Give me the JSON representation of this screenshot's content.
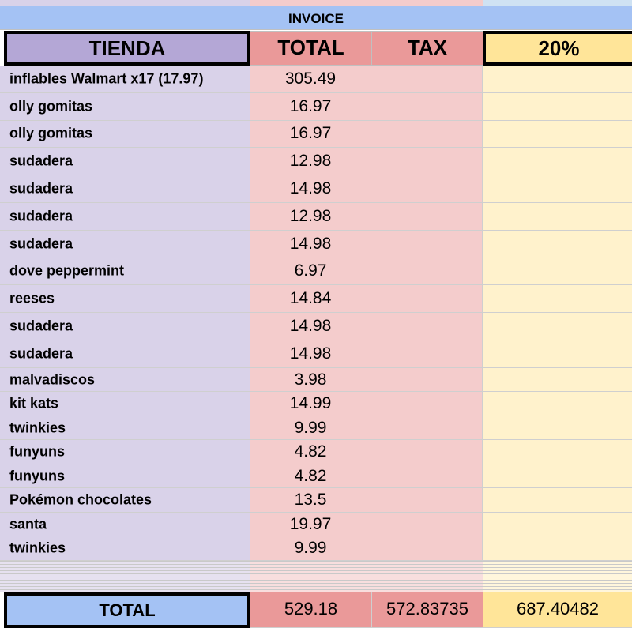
{
  "sheet": {
    "title": "INVOICE",
    "headers": {
      "tienda": "TIENDA",
      "total": "TOTAL",
      "tax": "TAX",
      "percent": "20%"
    },
    "rows": [
      {
        "tienda": "inflables Walmart x17 (17.97)",
        "total": "305.49"
      },
      {
        "tienda": "olly gomitas",
        "total": "16.97"
      },
      {
        "tienda": "olly gomitas",
        "total": "16.97"
      },
      {
        "tienda": "sudadera",
        "total": "12.98"
      },
      {
        "tienda": "sudadera",
        "total": "14.98"
      },
      {
        "tienda": "sudadera",
        "total": "12.98"
      },
      {
        "tienda": "sudadera",
        "total": "14.98"
      },
      {
        "tienda": "dove peppermint",
        "total": "6.97"
      },
      {
        "tienda": "reeses",
        "total": "14.84"
      },
      {
        "tienda": "sudadera",
        "total": "14.98"
      },
      {
        "tienda": "sudadera",
        "total": "14.98"
      },
      {
        "tienda": "malvadiscos",
        "total": "3.98"
      },
      {
        "tienda": "kit kats",
        "total": "14.99"
      },
      {
        "tienda": "twinkies",
        "total": "9.99"
      },
      {
        "tienda": "funyuns",
        "total": "4.82"
      },
      {
        "tienda": "funyuns",
        "total": "4.82"
      },
      {
        "tienda": "Pokémon chocolates",
        "total": "13.5"
      },
      {
        "tienda": "santa",
        "total": "19.97"
      },
      {
        "tienda": "twinkies",
        "total": "9.99"
      }
    ],
    "totals": {
      "label": "TOTAL",
      "total": "529.18",
      "tax": "572.83735",
      "percent": "687.40482"
    }
  },
  "colors": {
    "title_bar": "#a4c2f4",
    "tienda_header": "#b4a7d6",
    "tienda_cells": "#d9d2e9",
    "total_header": "#ea9999",
    "total_cells": "#f4cccc",
    "percent_header": "#ffe599",
    "percent_cells": "#fff2cc",
    "totals_label": "#a4c2f4"
  }
}
